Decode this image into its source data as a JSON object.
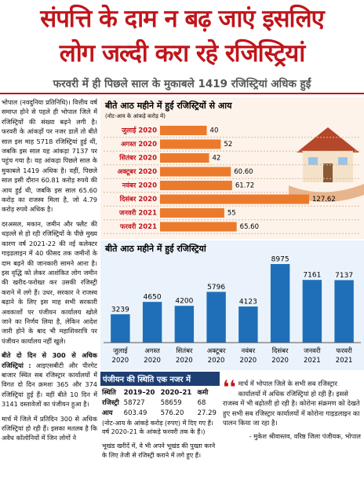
{
  "header": {
    "title_lines": [
      "संपत्ति के दाम न बढ़ जाएं इसलिए",
      "लोग जल्दी करा रहे रजिस्ट्रियां"
    ],
    "subtitle": "फरवरी में ही पिछले साल के मुकाबले 1419 रजिस्ट्रियां अधिक हुईं"
  },
  "article": {
    "paragraphs": [
      "भोपाल (नवदुनिया प्रतिनिधि)। वित्तीय वर्ष समाप्त होने से पहले ही भोपाल जिले में रजिस्ट्रियों की संख्या बढ़ने लगी है। फरवरी के आंकड़ों पर नजर डालें तो बीते साल इस माह 5718 रजिस्ट्रियां हुई थीं, जबकि इस साल यह आंकड़ा 7137 पर पहुंच गया है। यह आंकड़ा पिछले साल के मुकाबले 1419 अधिक है। वहीं, पिछले साल इसी दौरान 60.81 करोड़ रुपये की आय हुई थी, जबकि इस साल 65.60 करोड़ का राजस्व मिला है, जो 4.79 करोड़ रुपये अधिक है।",
      "दरअसल, मकान, जमीन और फ्लैट की धड़ल्ले से हो रही रजिस्ट्रियों के पीछे मुख्य कारण वर्ष 2021-22 की नई कलेक्टर गाइडलाइन में 40 फीसद तक जमीनों के दाम बढ़ने की जानकारी सामने आना है। इस वृद्धि को लेकर आशंकित लोग जमीन की खरीद-फरोख्त कर उसकी रजिस्ट्री कराने में लगे हैं। उधर, सरकार ने राजस्व बढ़ाने के लिए इस माह सभी सरकारी अवकाशों पर पंजीयन कार्यालय खोले जाने का निर्णय लिया है, लेकिन आदेश जारी होने के बाद भी महाशिवरात्रि पर पंजीयन कार्यालय नहीं खुले।"
    ],
    "subheading": "बीते दो दिन से 300 से अधिक रजिस्ट्रियां :",
    "subheading_text": "आइएसबीटी और पीरगेट बाजार स्थित सब रजिस्ट्रार कार्यालयों में विगत दो दिन क्रमशः 365 और 374 रजिस्ट्रियां हुई हैं। वहीं बीते 10 दिन में 3141 दस्तावेजों का पंजीयन हुआ है।",
    "last_paragraph": "मार्च में जिले में प्रतिदिन 300 से अधिक रजिस्ट्रियां हो रही हैं। इसका मतलब है कि अवैध कॉलोनियों में जिन लोगों ने"
  },
  "chart_data": [
    {
      "type": "hbar",
      "title": "बीते आठ महीने में हुई रजिस्ट्रियों से आय",
      "note": "(नोट-आय के आंकड़े करोड़ में)",
      "categories": [
        "जुलाई 2020",
        "अगस्त 2020",
        "सितंबर 2020",
        "अक्टूबर 2020",
        "नवंबर 2020",
        "दिसंबर 2020",
        "जनवरी 2021",
        "फरवरी 2021"
      ],
      "values": [
        40,
        52,
        42,
        60.6,
        61.72,
        127.62,
        55,
        65.6
      ],
      "value_labels": [
        "40",
        "52",
        "42",
        "60.60",
        "61.72",
        "127.62",
        "55",
        "65.60"
      ],
      "color": "#ec7a2c"
    },
    {
      "type": "bar",
      "title": "बीते आठ महीने में हुई रजिस्ट्रियां",
      "categories": [
        "जुलाई 2020",
        "अगस्त 2020",
        "सितंबर 2020",
        "अक्टूबर 2020",
        "नवंबर 2020",
        "दिसंबर 2020",
        "जनवरी 2021",
        "फरवरी 2021"
      ],
      "values": [
        3239,
        4650,
        4200,
        5796,
        4123,
        8975,
        7161,
        7137
      ],
      "color": "#1f6fb8"
    }
  ],
  "table": {
    "title": "पंजीयन की स्थिति एक नजर में",
    "columns": [
      "स्थिति",
      "2019–20",
      "2020–21",
      "कमी"
    ],
    "rows": [
      [
        "रजिस्ट्री",
        "58727",
        "58659",
        "68"
      ],
      [
        "आय",
        "603.49",
        "576.20",
        "27.29"
      ]
    ],
    "note": "(नोट-आय के आंकड़े करोड़ (रुपए) में दिए गए हैं। वर्ष 2020-21 के आंकड़े फरवरी तक के हैं।)"
  },
  "article_end": "भूखंड खरीदें में, वे भी अपने भूखंड की पुख्ता करने के लिए तेजी से रजिस्ट्री कराने में लगे हुए हैं।",
  "quote": {
    "text": "मार्च में भोपाल जिले के सभी सब रजिस्ट्रार कार्यालयों में अधिक रजिस्ट्रियां हो रही हैं। इससे राजस्व में भी बढ़ोतरी हो रही है। कोरोना संक्रमण को देखते हुए सभी सब रजिस्ट्रार कार्यालयों में कोरोना गाइडलाइन का पालन किया जा रहा है।",
    "attribution": "- मुकेश श्रीवास्तव, वरिष्ठ जिला पंजीयक, भोपाल"
  }
}
